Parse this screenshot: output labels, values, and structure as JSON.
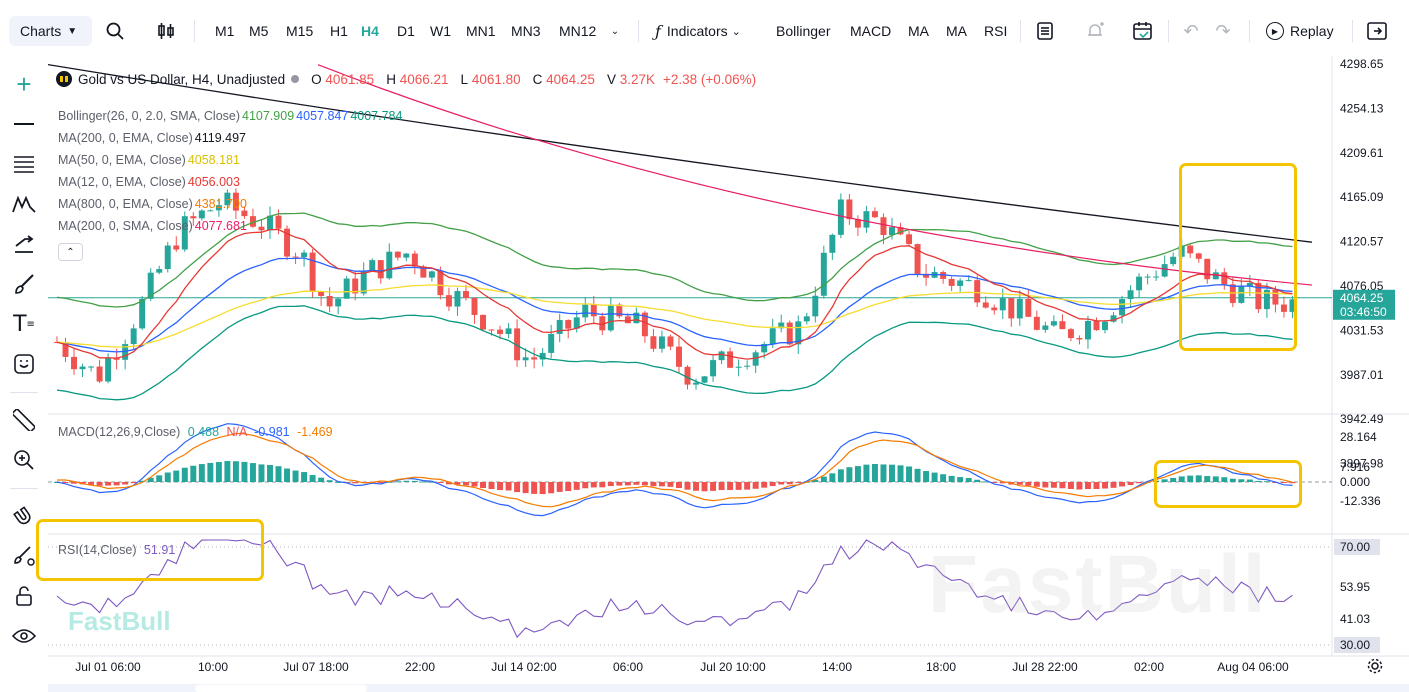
{
  "toolbar": {
    "charts_label": "Charts",
    "timeframes": [
      "M1",
      "M5",
      "M15",
      "H1",
      "H4",
      "D1",
      "W1",
      "MN1",
      "MN3",
      "MN12"
    ],
    "active_timeframe": "H4",
    "indicators_label": "Indicators",
    "quick_indicators": [
      "Bollinger",
      "MACD",
      "MA",
      "MA",
      "RSI"
    ],
    "replay_label": "Replay"
  },
  "symbol": {
    "title": "Gold vs US Dollar, H4, Unadjusted",
    "open_label": "O",
    "open": "4061.85",
    "high_label": "H",
    "high": "4066.21",
    "low_label": "L",
    "low": "4061.80",
    "close_label": "C",
    "close": "4064.25",
    "volume_label": "V",
    "volume": "3.27K",
    "change": "+2.38 (+0.06%)"
  },
  "indicators": [
    {
      "name": "Bollinger(26, 0, 2.0, SMA, Close)",
      "values": [
        "4107.909",
        "4057.847",
        "4007.784"
      ],
      "colors": [
        "#43a047",
        "#2962ff",
        "#089981"
      ]
    },
    {
      "name": "MA(200, 0, EMA, Close)",
      "values": [
        "4119.497"
      ],
      "colors": [
        "#131722"
      ]
    },
    {
      "name": "MA(50, 0, EMA, Close)",
      "values": [
        "4058.181"
      ],
      "colors": [
        "#f6dc2f"
      ]
    },
    {
      "name": "MA(12, 0, EMA, Close)",
      "values": [
        "4056.003"
      ],
      "colors": [
        "#e53935"
      ]
    },
    {
      "name": "MA(800, 0, EMA, Close)",
      "values": [
        "4381.700"
      ],
      "colors": [
        "#f57c00"
      ]
    },
    {
      "name": "MA(200, 0, SMA, Close)",
      "values": [
        "4077.681"
      ],
      "colors": [
        "#e91e63"
      ]
    }
  ],
  "price_axis": [
    "4298.65",
    "4254.13",
    "4209.61",
    "4165.09",
    "4120.57",
    "4076.05",
    "4031.53",
    "3987.01",
    "3942.49",
    "3897.98"
  ],
  "current_price": {
    "price": "4064.25",
    "countdown": "03:46:50"
  },
  "macd": {
    "name": "MACD(12,26,9,Close)",
    "values": [
      "0.488",
      "N/A",
      "-0.981",
      "-1.469"
    ],
    "colors": [
      "#26a69a",
      "#ef5350",
      "#2962ff",
      "#f57c00"
    ],
    "axis": [
      "28.164",
      "7.916",
      "0.000",
      "-12.336"
    ]
  },
  "rsi": {
    "name": "RSI(14,Close)",
    "value": "51.91",
    "axis": [
      "70.00",
      "53.95",
      "41.03",
      "30.00"
    ]
  },
  "time_axis": [
    "Jul 01 06:00",
    "10:00",
    "Jul 07 18:00",
    "22:00",
    "Jul 14 02:00",
    "06:00",
    "Jul 20 10:00",
    "14:00",
    "18:00",
    "Jul 28 22:00",
    "02:00",
    "Aug 04 06:00"
  ],
  "watermark": "FastBull",
  "colors": {
    "up": "#26a69a",
    "down": "#ef5350",
    "highlight": "#f5c400",
    "accent": "#26a69a"
  },
  "icons": [
    "search-icon",
    "candles-icon",
    "indicator-fx-icon",
    "layout-icon",
    "alert-icon",
    "calendar-icon",
    "undo-icon",
    "redo-icon",
    "replay-icon",
    "fullscreen-icon"
  ]
}
